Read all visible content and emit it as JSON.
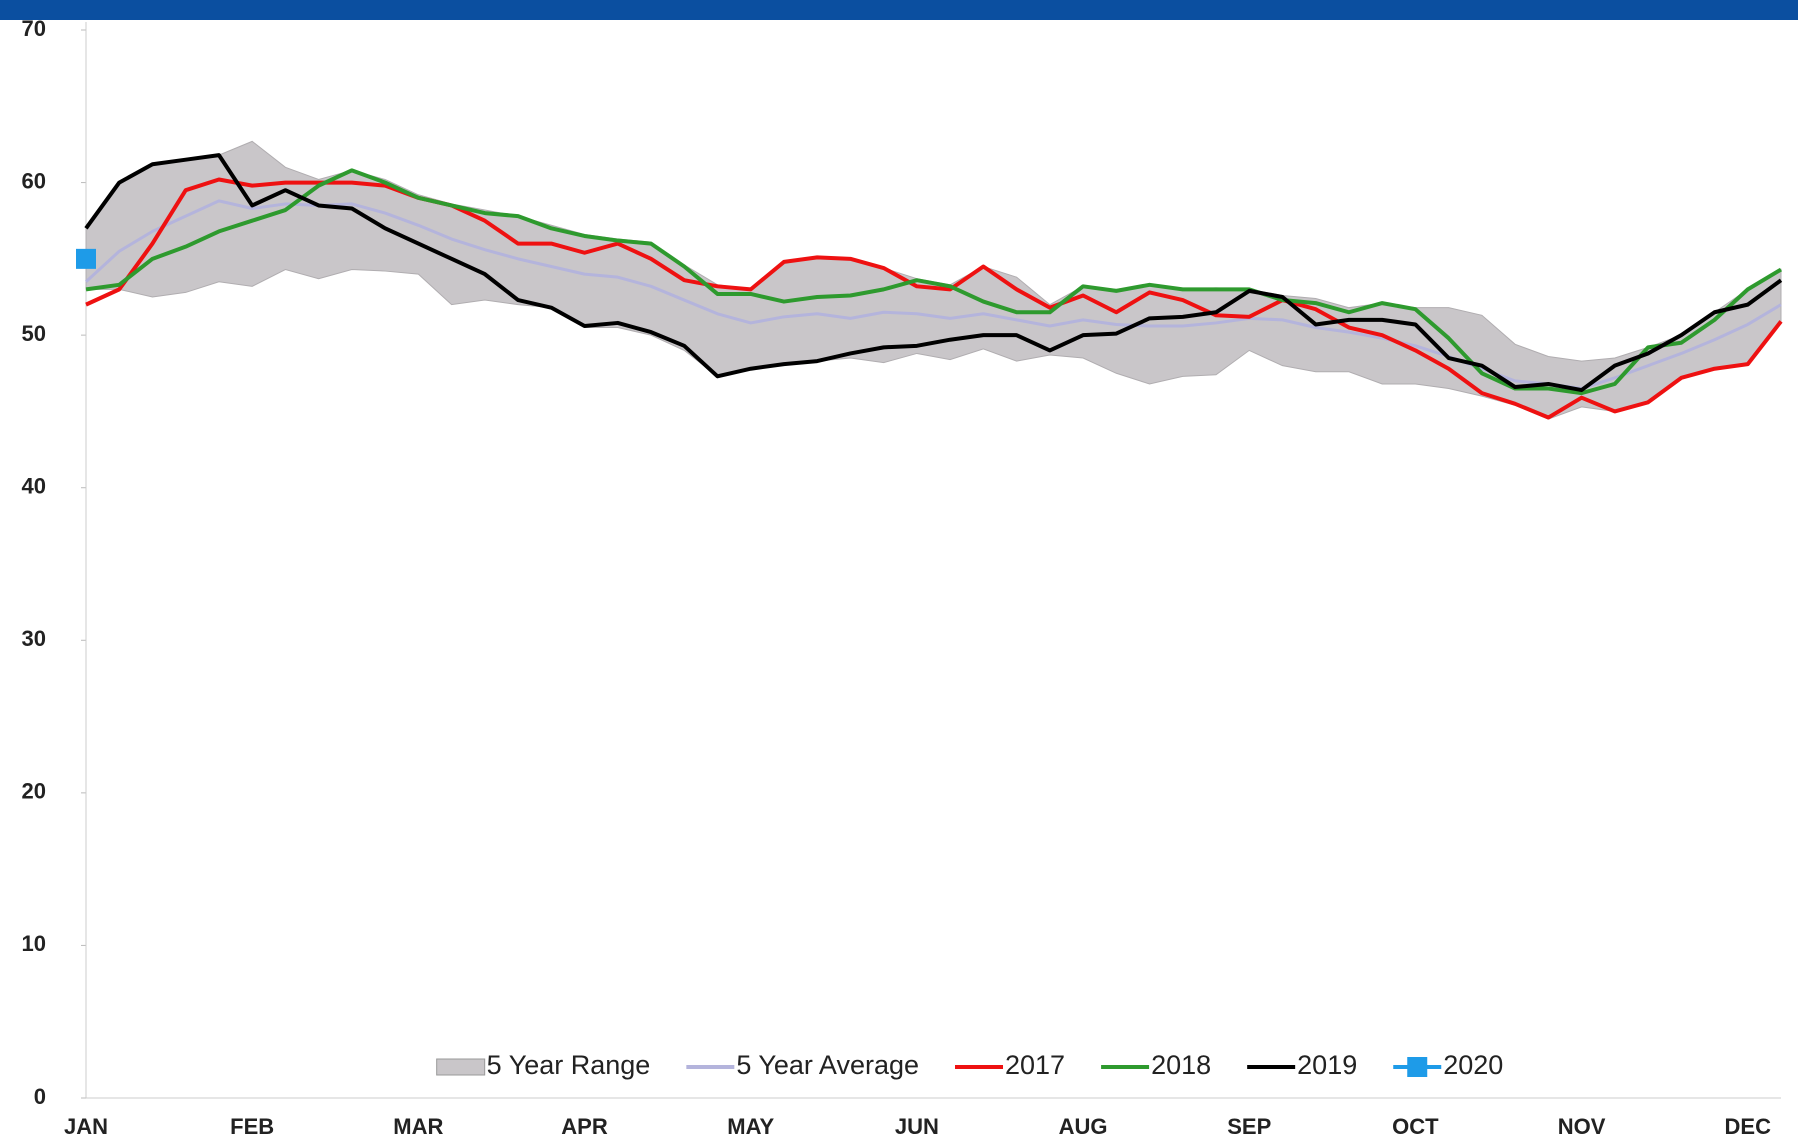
{
  "chart_data": {
    "type": "line",
    "categories": [
      "JAN",
      null,
      null,
      null,
      null,
      "FEB",
      null,
      null,
      null,
      null,
      "MAR",
      null,
      null,
      null,
      null,
      "APR",
      null,
      null,
      null,
      null,
      "MAY",
      null,
      null,
      null,
      null,
      "JUN",
      null,
      null,
      null,
      null,
      "AUG",
      null,
      null,
      null,
      null,
      "SEP",
      null,
      null,
      null,
      null,
      "OCT",
      null,
      null,
      null,
      null,
      "NOV",
      null,
      null,
      null,
      null,
      "DEC",
      null
    ],
    "ylim": [
      0,
      70
    ],
    "yticks": [
      0,
      10,
      20,
      30,
      40,
      50,
      60,
      70
    ],
    "range": {
      "name": "5 Year Range",
      "color": "#c9c6c9",
      "low": [
        53,
        53,
        52.5,
        52.8,
        53.5,
        53.2,
        54.3,
        53.7,
        54.3,
        54.2,
        54,
        52,
        52.3,
        52,
        51.8,
        50.5,
        50.5,
        50,
        49,
        47.3,
        47.8,
        48.1,
        48.3,
        48.5,
        48.2,
        48.8,
        48.4,
        49.1,
        48.3,
        48.7,
        48.5,
        47.5,
        46.8,
        47.3,
        47.4,
        49,
        48,
        47.6,
        47.6,
        46.8,
        46.8,
        46.5,
        46,
        45.4,
        44.5,
        45.3,
        45,
        45.6,
        47.2,
        47.8,
        48.1,
        50.9
      ],
      "high": [
        57,
        60,
        61.2,
        61.5,
        61.8,
        62.7,
        61,
        60.2,
        60.8,
        60.2,
        59.2,
        58.6,
        58.2,
        57.8,
        57.2,
        56.6,
        56.3,
        56.1,
        54.6,
        53.3,
        53,
        54.8,
        55.1,
        55,
        54.4,
        53.7,
        53.3,
        54.5,
        53.8,
        52,
        53.2,
        53,
        53.3,
        53,
        53.1,
        53,
        52.6,
        52.4,
        51.8,
        52.1,
        51.8,
        51.8,
        51.3,
        49.4,
        48.6,
        48.3,
        48.5,
        49.2,
        50,
        51.5,
        53,
        54.3
      ]
    },
    "series": [
      {
        "name": "5 Year Average",
        "color": "#b4b4dc",
        "values": [
          53.5,
          55.5,
          56.8,
          57.8,
          58.8,
          58.3,
          58.6,
          58.5,
          58.6,
          58,
          57.2,
          56.3,
          55.6,
          55,
          54.5,
          54,
          53.8,
          53.2,
          52.3,
          51.4,
          50.8,
          51.2,
          51.4,
          51.1,
          51.5,
          51.4,
          51.1,
          51.4,
          51,
          50.6,
          51,
          50.7,
          50.6,
          50.6,
          50.8,
          51.1,
          51,
          50.5,
          50.2,
          49.8,
          49.3,
          48.6,
          47.8,
          47,
          46.8,
          46.5,
          47.2,
          48,
          48.8,
          49.7,
          50.7,
          52
        ]
      },
      {
        "name": "2017",
        "color": "#ee1111",
        "values": [
          52,
          53,
          56,
          59.5,
          60.2,
          59.8,
          60,
          60,
          60,
          59.8,
          59,
          58.5,
          57.5,
          56,
          56,
          55.4,
          56,
          55,
          53.6,
          53.2,
          53,
          54.8,
          55.1,
          55,
          54.4,
          53.2,
          53,
          54.5,
          53,
          51.8,
          52.6,
          51.5,
          52.8,
          52.3,
          51.3,
          51.2,
          52.3,
          51.7,
          50.5,
          50,
          49,
          47.8,
          46.2,
          45.5,
          44.6,
          45.9,
          45,
          45.6,
          47.2,
          47.8,
          48.1,
          50.9
        ]
      },
      {
        "name": "2018",
        "color": "#2e9a2e",
        "values": [
          53,
          53.3,
          55,
          55.8,
          56.8,
          57.5,
          58.2,
          59.8,
          60.8,
          60,
          59,
          58.5,
          58,
          57.8,
          57,
          56.5,
          56.2,
          56,
          54.5,
          52.7,
          52.7,
          52.2,
          52.5,
          52.6,
          53,
          53.6,
          53.2,
          52.2,
          51.5,
          51.5,
          53.2,
          52.9,
          53.3,
          53,
          53,
          53,
          52.3,
          52.1,
          51.5,
          52.1,
          51.7,
          49.8,
          47.5,
          46.5,
          46.5,
          46.2,
          46.8,
          49.2,
          49.5,
          51,
          53,
          54.3
        ]
      },
      {
        "name": "2019",
        "color": "#000000",
        "values": [
          57,
          60,
          61.2,
          61.5,
          61.8,
          58.5,
          59.5,
          58.5,
          58.3,
          57,
          56,
          55,
          54,
          52.3,
          51.8,
          50.6,
          50.8,
          50.2,
          49.3,
          47.3,
          47.8,
          48.1,
          48.3,
          48.8,
          49.2,
          49.3,
          49.7,
          50,
          50,
          49,
          50,
          50.1,
          51.1,
          51.2,
          51.5,
          52.9,
          52.5,
          50.7,
          51,
          51,
          50.7,
          48.5,
          48,
          46.6,
          46.8,
          46.4,
          48,
          48.8,
          50,
          51.5,
          52,
          53.6
        ]
      },
      {
        "name": "2020",
        "color": "#1e9be8",
        "marker": "square",
        "values": [
          55,
          null,
          null,
          null,
          null,
          null,
          null,
          null,
          null,
          null,
          null,
          null,
          null,
          null,
          null,
          null,
          null,
          null,
          null,
          null,
          null,
          null,
          null,
          null,
          null,
          null,
          null,
          null,
          null,
          null,
          null,
          null,
          null,
          null,
          null,
          null,
          null,
          null,
          null,
          null,
          null,
          null,
          null,
          null,
          null,
          null,
          null,
          null,
          null,
          null,
          null,
          null
        ]
      }
    ]
  }
}
